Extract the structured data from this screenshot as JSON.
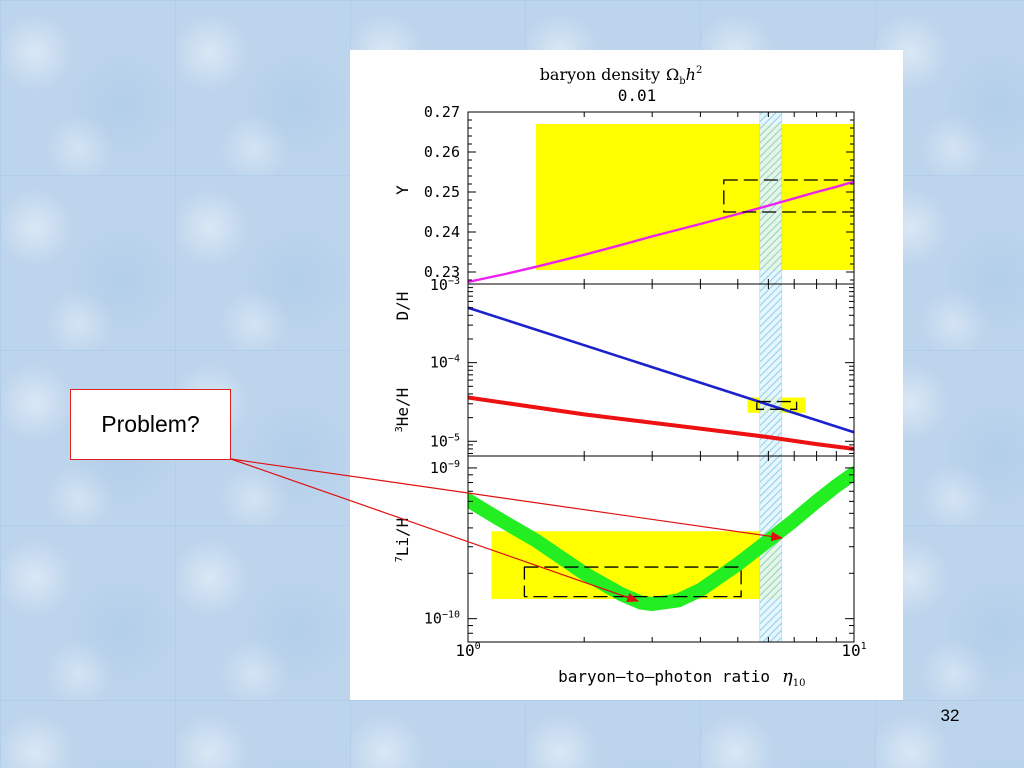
{
  "slide": {
    "callout_text": "Problem?",
    "slide_number": "32"
  },
  "chart_data": {
    "type": "line",
    "top_axis": {
      "title": "baryon density",
      "title_symbol": "Ω",
      "title_symbol_sub": "b",
      "title_symbol_rest": "h",
      "title_symbol_sup": "2",
      "tick_label": "0.01"
    },
    "xlabel": "baryon–to–photon ratio",
    "xlabel_symbol": "η",
    "xlabel_symbol_sub": "10",
    "xscale": "log",
    "xlim": [
      1,
      10
    ],
    "x_tick_labels": [
      {
        "base": "10",
        "exp": "0"
      },
      {
        "base": "10",
        "exp": "1"
      }
    ],
    "vertical_band": {
      "x_range": [
        5.7,
        6.5
      ],
      "color": "#9fd9ee",
      "pattern": "hatched"
    },
    "panels": [
      {
        "id": "Y",
        "ylabel": "Y",
        "yscale": "linear",
        "ylim": [
          0.227,
          0.27
        ],
        "y_tick_labels": [
          "0.27",
          "0.26",
          "0.25",
          "0.24",
          "0.23"
        ],
        "y_ticks": [
          0.27,
          0.26,
          0.25,
          0.24,
          0.23
        ],
        "bottom_tick_label": {
          "base": "10",
          "exp": "−3"
        },
        "yellow_box": {
          "x_range": [
            1.5,
            10
          ],
          "y_range": [
            0.2305,
            0.267
          ]
        },
        "dashed_box": {
          "x_range": [
            4.6,
            10
          ],
          "y_range": [
            0.245,
            0.253
          ]
        },
        "series": [
          {
            "color": "#ee22ee",
            "x": [
              1,
              1.25,
              1.5,
              2,
              2.5,
              3,
              4,
              5,
              6,
              7,
              8,
              9,
              10
            ],
            "y": [
              0.2275,
              0.2295,
              0.2313,
              0.2343,
              0.2368,
              0.2389,
              0.242,
              0.2445,
              0.2466,
              0.2484,
              0.25,
              0.2513,
              0.2526
            ]
          }
        ]
      },
      {
        "id": "DH_HeH",
        "ylabel_top": "D/H",
        "ylabel_bottom": "He/H",
        "ylabel_bottom_sup": "3",
        "yscale": "log",
        "ylim": [
          6.5e-06,
          0.001
        ],
        "y_tick_labels": [
          {
            "base": "10",
            "exp": "−4",
            "value": 0.0001
          },
          {
            "base": "10",
            "exp": "−5",
            "value": 1e-05
          }
        ],
        "yellow_box": {
          "x_range": [
            5.3,
            7.5
          ],
          "y_range": [
            2.3e-05,
            3.6e-05
          ]
        },
        "dashed_box": {
          "x_range": [
            5.6,
            7.1
          ],
          "y_range": [
            2.55e-05,
            3.2e-05
          ]
        },
        "series": [
          {
            "name": "D/H",
            "color": "#1a22cc",
            "x": [
              1,
              10
            ],
            "y": [
              0.0005,
              1.3e-05
            ]
          },
          {
            "name": "3He/H",
            "color": "#ee1111",
            "x": [
              1,
              2,
              4,
              6,
              8,
              10
            ],
            "y": [
              3.6e-05,
              2.2e-05,
              1.45e-05,
              1.13e-05,
              9.2e-06,
              8e-06
            ]
          }
        ]
      },
      {
        "id": "LiH",
        "ylabel": "Li/H",
        "ylabel_sup": "7",
        "yscale": "log",
        "ylim": [
          7e-11,
          1.2e-09
        ],
        "y_tick_labels": [
          {
            "base": "10",
            "exp": "−9",
            "value": 1e-09
          },
          {
            "base": "10",
            "exp": "−10",
            "value": 1e-10
          }
        ],
        "yellow_box": {
          "x_range": [
            1.15,
            6.4
          ],
          "y_range": [
            1.35e-10,
            3.8e-10
          ]
        },
        "dashed_box": {
          "x_range": [
            1.4,
            5.1
          ],
          "y_range": [
            1.4e-10,
            2.2e-10
          ]
        },
        "series": [
          {
            "name": "7Li/H",
            "color": "#22ee22",
            "x": [
              1,
              1.2,
              1.5,
              2,
              2.5,
              2.8,
              3,
              3.5,
              4,
              5,
              6,
              7,
              8,
              9,
              10
            ],
            "y": [
              6.1e-10,
              4.6e-10,
              3.3e-10,
              2e-10,
              1.45e-10,
              1.28e-10,
              1.25e-10,
              1.32e-10,
              1.55e-10,
              2.3e-10,
              3.3e-10,
              4.5e-10,
              6e-10,
              7.6e-10,
              9.2e-10
            ]
          }
        ]
      }
    ]
  }
}
